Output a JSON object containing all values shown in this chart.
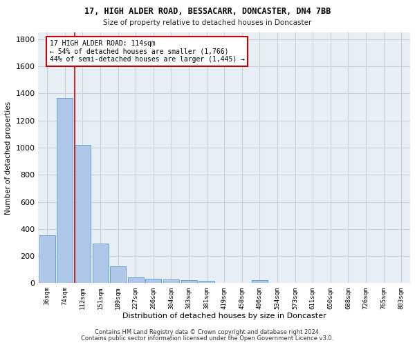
{
  "title_line1": "17, HIGH ALDER ROAD, BESSACARR, DONCASTER, DN4 7BB",
  "title_line2": "Size of property relative to detached houses in Doncaster",
  "xlabel": "Distribution of detached houses by size in Doncaster",
  "ylabel": "Number of detached properties",
  "categories": [
    "36sqm",
    "74sqm",
    "112sqm",
    "151sqm",
    "189sqm",
    "227sqm",
    "266sqm",
    "304sqm",
    "343sqm",
    "381sqm",
    "419sqm",
    "458sqm",
    "496sqm",
    "534sqm",
    "573sqm",
    "611sqm",
    "650sqm",
    "688sqm",
    "726sqm",
    "765sqm",
    "803sqm"
  ],
  "values": [
    355,
    1366,
    1020,
    290,
    125,
    42,
    35,
    28,
    20,
    15,
    0,
    0,
    20,
    0,
    0,
    0,
    0,
    0,
    0,
    0,
    0
  ],
  "bar_color": "#aec6e8",
  "bar_edge_color": "#5b9bd5",
  "annotation_text_line1": "17 HIGH ALDER ROAD: 114sqm",
  "annotation_text_line2": "← 54% of detached houses are smaller (1,766)",
  "annotation_text_line3": "44% of semi-detached houses are larger (1,445) →",
  "annotation_box_color": "#ffffff",
  "annotation_box_edge_color": "#cc0000",
  "property_line_color": "#cc0000",
  "property_line_index": 2,
  "ylim": [
    0,
    1850
  ],
  "yticks": [
    0,
    200,
    400,
    600,
    800,
    1000,
    1200,
    1400,
    1600,
    1800
  ],
  "grid_color": "#c8d0dc",
  "bg_color": "#e8eef5",
  "footnote1": "Contains HM Land Registry data © Crown copyright and database right 2024.",
  "footnote2": "Contains public sector information licensed under the Open Government Licence v3.0."
}
